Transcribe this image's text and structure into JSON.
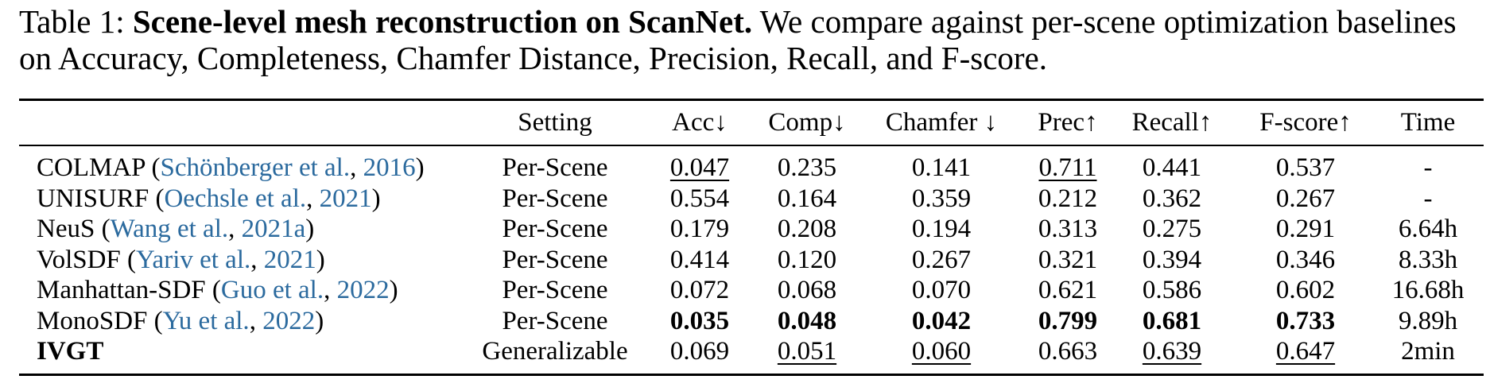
{
  "caption": {
    "label": "Table 1:",
    "bold": "Scene-level mesh reconstruction on ScanNet.",
    "text": "We compare against per-scene optimization baselines on Accuracy, Completeness, Chamfer Distance, Precision, Recall, and F-score."
  },
  "table": {
    "header": [
      "Setting",
      "Acc↓",
      "Comp↓",
      "Chamfer ↓",
      "Prec↑",
      "Recall↑",
      "F-score↑",
      "Time"
    ],
    "rows": [
      {
        "method": [
          "COLMAP (",
          "Schönberger et al.",
          ", ",
          "2016",
          ")"
        ],
        "cells": [
          "Per-Scene",
          "0.047",
          "0.235",
          "0.141",
          "0.711",
          "0.441",
          "0.537",
          "-"
        ]
      },
      {
        "method": [
          "UNISURF (",
          "Oechsle et al.",
          ", ",
          "2021",
          ")"
        ],
        "cells": [
          "Per-Scene",
          "0.554",
          "0.164",
          "0.359",
          "0.212",
          "0.362",
          "0.267",
          "-"
        ]
      },
      {
        "method": [
          "NeuS (",
          "Wang et al.",
          ", ",
          "2021a",
          ")"
        ],
        "cells": [
          "Per-Scene",
          "0.179",
          "0.208",
          "0.194",
          "0.313",
          "0.275",
          "0.291",
          "6.64h"
        ]
      },
      {
        "method": [
          "VolSDF (",
          "Yariv et al.",
          ", ",
          "2021",
          ")"
        ],
        "cells": [
          "Per-Scene",
          "0.414",
          "0.120",
          "0.267",
          "0.321",
          "0.394",
          "0.346",
          "8.33h"
        ]
      },
      {
        "method": [
          "Manhattan-SDF (",
          "Guo et al.",
          ", ",
          "2022",
          ")"
        ],
        "cells": [
          "Per-Scene",
          "0.072",
          "0.068",
          "0.070",
          "0.621",
          "0.586",
          "0.602",
          "16.68h"
        ]
      },
      {
        "method": [
          "MonoSDF (",
          "Yu et al.",
          ", ",
          "2022",
          ")"
        ],
        "cells": [
          "Per-Scene",
          "0.035",
          "0.048",
          "0.042",
          "0.799",
          "0.681",
          "0.733",
          "9.89h"
        ]
      },
      {
        "method": [
          "IVGT"
        ],
        "cells": [
          "Generalizable",
          "0.069",
          "0.051",
          "0.060",
          "0.663",
          "0.639",
          "0.647",
          "2min"
        ]
      }
    ]
  }
}
